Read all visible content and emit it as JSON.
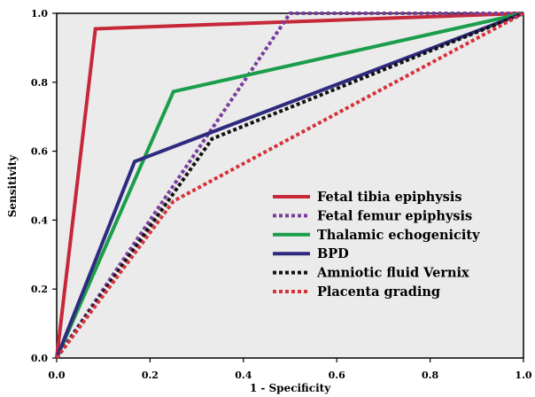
{
  "chart_data": {
    "type": "line",
    "xlabel": "1 - Specificity",
    "ylabel": "Sensitivity",
    "xlim": [
      0,
      1
    ],
    "ylim": [
      0,
      1
    ],
    "xticks": [
      0,
      0.2,
      0.4,
      0.6,
      0.8,
      1.0
    ],
    "xtick_labels": [
      "0.0",
      "0.2",
      "0.4",
      "0.6",
      "0.8",
      "1.0"
    ],
    "yticks": [
      0,
      0.2,
      0.4,
      0.6,
      0.8,
      1.0
    ],
    "ytick_labels": [
      "0.0",
      "0.2",
      "0.4",
      "0.6",
      "0.8",
      "1.0"
    ],
    "grid": false,
    "legend_position": "bottom-right",
    "plot_background": "#ebebeb",
    "series": [
      {
        "name": "Fetal tibia epiphysis",
        "color": "#c6283a",
        "line_style": "solid",
        "x": [
          0,
          0.083,
          1
        ],
        "y": [
          0,
          0.955,
          1
        ]
      },
      {
        "name": "Fetal femur epiphysis",
        "color": "#7a3e9d",
        "line_style": "dotted",
        "x": [
          0,
          0.5,
          1
        ],
        "y": [
          0,
          1.0,
          1
        ]
      },
      {
        "name": "Thalamic echogenicity",
        "color": "#1b9e4b",
        "line_style": "solid",
        "x": [
          0,
          0.25,
          1
        ],
        "y": [
          0,
          0.773,
          1
        ]
      },
      {
        "name": "BPD",
        "color": "#2e2b7f",
        "line_style": "solid",
        "x": [
          0,
          0.167,
          1
        ],
        "y": [
          0,
          0.57,
          1
        ]
      },
      {
        "name": "Amniotic fluid Vernix",
        "color": "#111111",
        "line_style": "dotted",
        "x": [
          0,
          0.333,
          1
        ],
        "y": [
          0,
          0.636,
          1
        ]
      },
      {
        "name": "Placenta grading",
        "color": "#d6323a",
        "line_style": "dotted",
        "x": [
          0,
          0.25,
          1
        ],
        "y": [
          0,
          0.455,
          1
        ]
      }
    ]
  }
}
